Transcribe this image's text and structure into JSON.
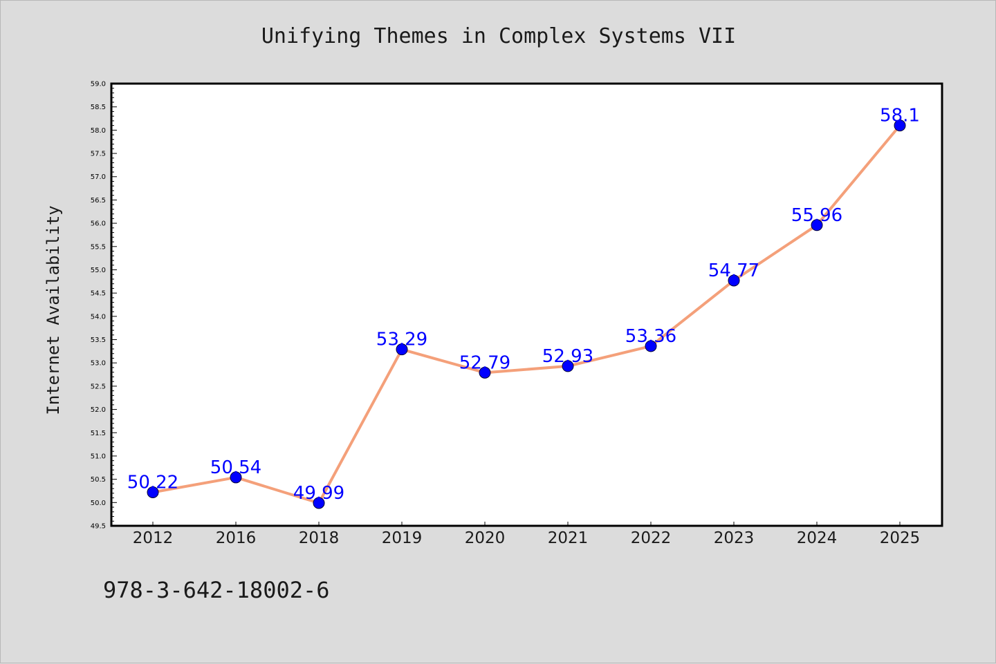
{
  "isbn": "978-3-642-18002-6",
  "colors": {
    "background": "#dcdcdc",
    "plot_background": "#ffffff",
    "line": "#f4a07a",
    "marker": "#0000ff",
    "data_label": "#0000ff"
  },
  "chart_data": {
    "type": "line",
    "title": "Unifying Themes in Complex Systems VII",
    "xlabel": "",
    "ylabel": "Internet Availability",
    "categories": [
      "2012",
      "2016",
      "2018",
      "2019",
      "2020",
      "2021",
      "2022",
      "2023",
      "2024",
      "2025"
    ],
    "series": [
      {
        "values": [
          50.22,
          50.54,
          49.99,
          53.29,
          52.79,
          52.93,
          53.36,
          54.77,
          55.96,
          58.1
        ],
        "labels": [
          "50.22",
          "50.54",
          "49.99",
          "53.29",
          "52.79",
          "52.93",
          "53.36",
          "54.77",
          "55.96",
          "58.1"
        ]
      }
    ],
    "ylim": [
      49.5,
      59.0
    ],
    "yticks": [
      "49.5",
      "50.0",
      "50.5",
      "51.0",
      "51.5",
      "52.0",
      "52.5",
      "53.0",
      "53.5",
      "54.0",
      "54.5",
      "55.0",
      "55.5",
      "56.0",
      "56.5",
      "57.0",
      "57.5",
      "58.0",
      "58.5",
      "59.0"
    ],
    "grid": false,
    "legend": "none"
  }
}
